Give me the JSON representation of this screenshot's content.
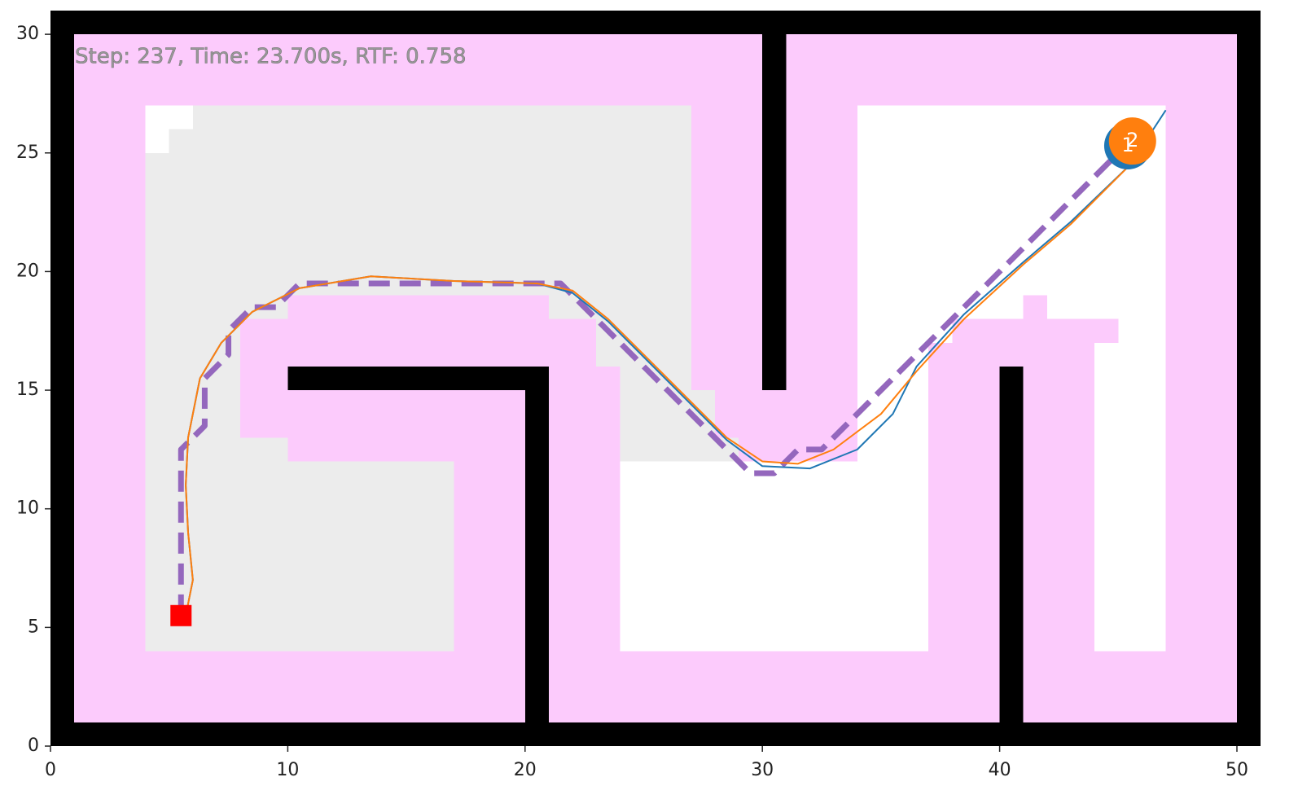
{
  "chart_data": {
    "type": "line",
    "status": "Step: 237, Time: 23.700s, RTF: 0.758",
    "xlim": [
      0,
      51
    ],
    "ylim": [
      0,
      31
    ],
    "xticks": [
      0,
      10,
      20,
      30,
      40,
      50
    ],
    "yticks": [
      0,
      5,
      10,
      15,
      20,
      25,
      30
    ],
    "series": [
      {
        "color": "#9467bd",
        "dashed": true,
        "x": [
          5.5,
          5.5,
          6.5,
          6.5,
          7.5,
          7.5,
          8.5,
          9.5,
          10.5,
          21.5,
          22.5,
          29.5,
          30.5,
          31.5,
          32.5,
          37.5,
          38.5,
          45.5
        ],
        "y": [
          5.5,
          12.5,
          13.5,
          15.5,
          16.5,
          17.5,
          18.5,
          18.5,
          19.5,
          19.5,
          18.5,
          11.5,
          11.5,
          12.5,
          12.5,
          17.5,
          18.5,
          25.5
        ]
      },
      {
        "color": "#1f77b4",
        "dashed": false,
        "x": [
          5.7,
          6.0,
          5.8,
          5.7,
          5.8,
          6.3,
          7.2,
          8.5,
          10.5,
          13.5,
          17,
          20.5,
          22,
          23.5,
          25,
          27,
          28.5,
          30,
          32,
          34,
          35.5,
          36.5,
          38.5,
          41,
          43,
          45.5,
          47
        ],
        "y": [
          5.5,
          7,
          9,
          11,
          13,
          15.5,
          17,
          18.3,
          19.3,
          19.8,
          19.6,
          19.5,
          19.1,
          17.9,
          16.4,
          14.4,
          12.9,
          11.8,
          11.7,
          12.5,
          14,
          16,
          18.2,
          20.4,
          22.1,
          24.5,
          26.8
        ]
      },
      {
        "color": "#ff7f0e",
        "dashed": false,
        "x": [
          5.7,
          6.0,
          5.8,
          5.7,
          5.8,
          6.3,
          7.2,
          8.5,
          10.5,
          13.5,
          17,
          20.5,
          22,
          23.5,
          25,
          27,
          28.5,
          30,
          31.5,
          33,
          35,
          36.5,
          38.5,
          41,
          43,
          45.5
        ],
        "y": [
          5.5,
          7,
          9,
          11,
          13,
          15.5,
          17,
          18.3,
          19.3,
          19.8,
          19.6,
          19.5,
          19.2,
          18,
          16.5,
          14.5,
          13,
          12,
          11.9,
          12.5,
          14,
          15.8,
          18,
          20.3,
          22,
          24.5
        ]
      }
    ],
    "start": {
      "x": 5.5,
      "y": 5.5,
      "color": "#ff0000"
    },
    "agents": [
      {
        "label": "1",
        "color": "#1f77b4",
        "x": 45.4,
        "y": 25.3
      },
      {
        "label": "2",
        "color": "#ff7f0e",
        "x": 45.6,
        "y": 25.5
      }
    ]
  }
}
